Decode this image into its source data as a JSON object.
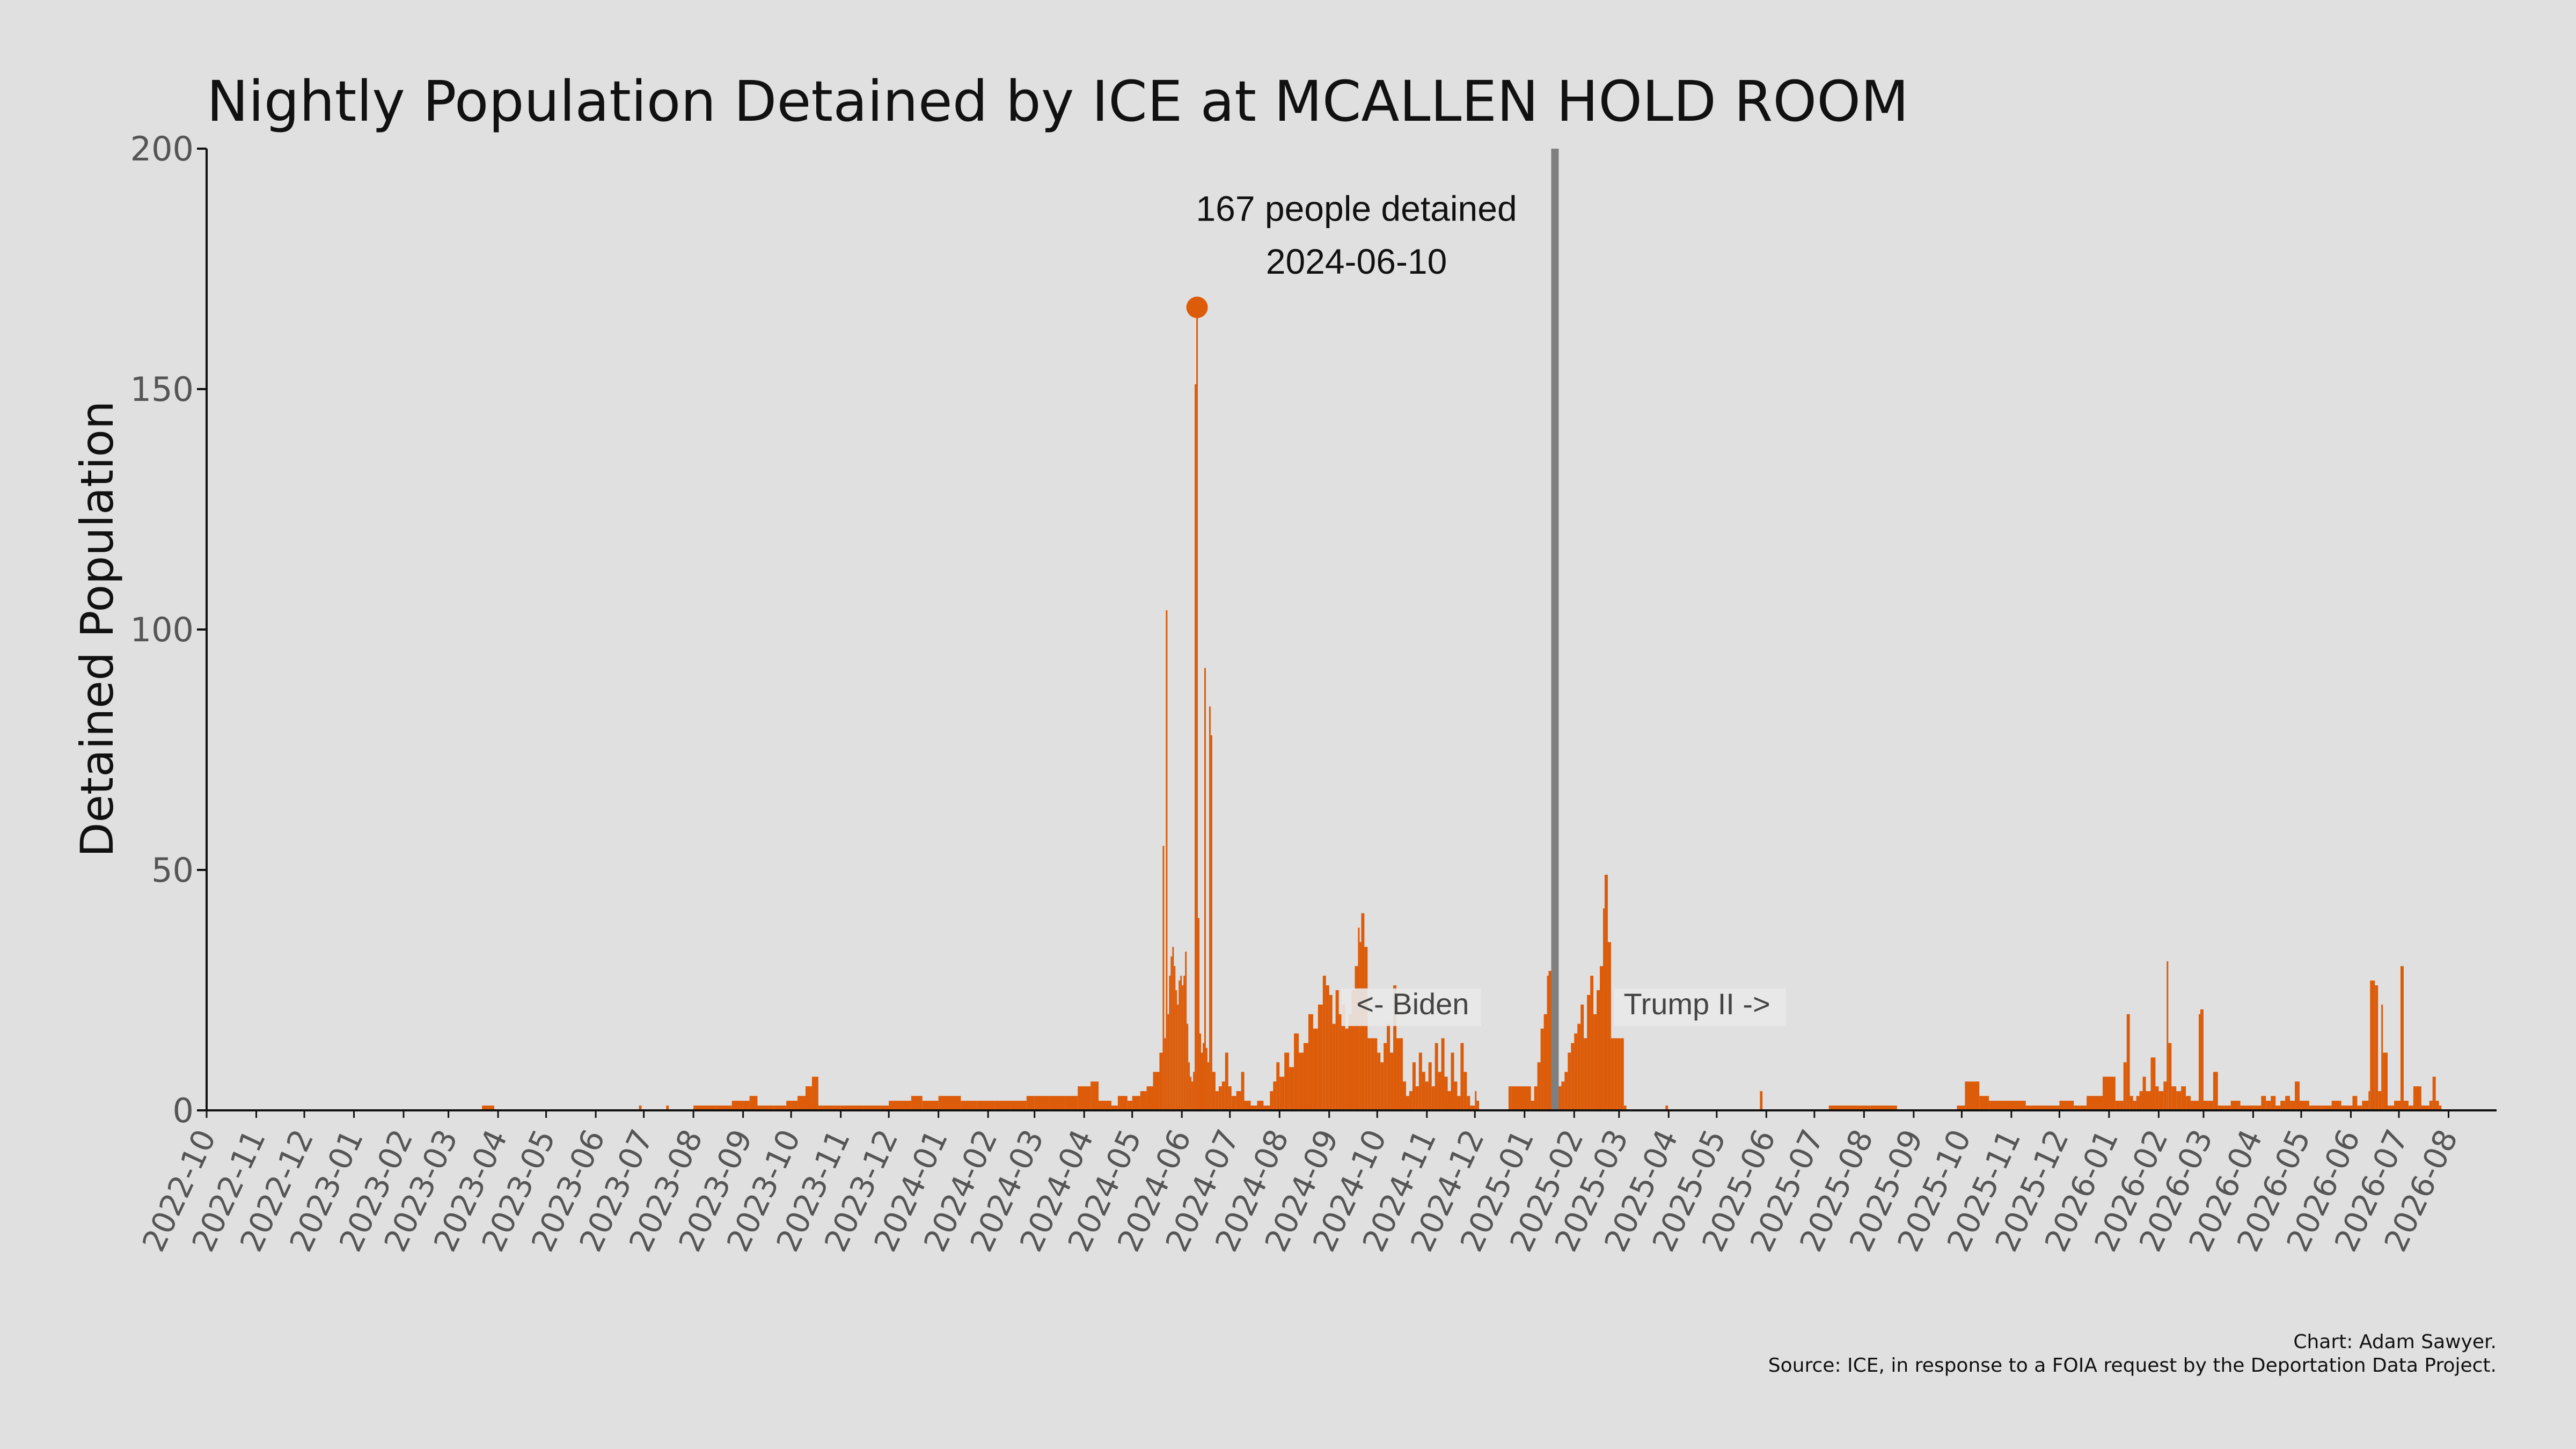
{
  "colors": {
    "background": "#e0e0e0",
    "bars": "#dc5c0a",
    "divider": "#7f7f7f",
    "label_box": "#e9e9e9",
    "axis": "#111111"
  },
  "chart_data": {
    "type": "bar",
    "title": "Nightly Population Detained by ICE at MCALLEN HOLD ROOM",
    "xlabel": "",
    "ylabel": "Detained Population",
    "ylim": [
      0,
      200
    ],
    "yticks": [
      "0",
      "50",
      "100",
      "150",
      "200"
    ],
    "x_range": [
      "2022-10-01",
      "2026-08-31"
    ],
    "xticks": [
      "2022-10",
      "2022-11",
      "2022-12",
      "2023-01",
      "2023-02",
      "2023-03",
      "2023-04",
      "2023-05",
      "2023-06",
      "2023-07",
      "2023-08",
      "2023-09",
      "2023-10",
      "2023-11",
      "2023-12",
      "2024-01",
      "2024-02",
      "2024-03",
      "2024-04",
      "2024-05",
      "2024-06",
      "2024-07",
      "2024-08",
      "2024-09",
      "2024-10",
      "2024-11",
      "2024-12",
      "2025-01",
      "2025-02",
      "2025-03",
      "2025-04",
      "2025-05",
      "2025-06",
      "2025-07",
      "2025-08",
      "2025-09",
      "2025-10",
      "2025-11",
      "2025-12",
      "2026-01",
      "2026-02",
      "2026-03",
      "2026-04",
      "2026-05",
      "2026-06",
      "2026-07",
      "2026-08"
    ],
    "grid": false,
    "legend": "none",
    "series": [
      {
        "points": [
          [
            "2023-03-22",
            1
          ],
          [
            "2023-03-28",
            1
          ],
          [
            "2023-06-28",
            1
          ],
          [
            "2023-07-15",
            1
          ],
          [
            "2023-08-01",
            1
          ],
          [
            "2023-08-15",
            1
          ],
          [
            "2023-08-25",
            2
          ],
          [
            "2023-09-01",
            2
          ],
          [
            "2023-09-05",
            3
          ],
          [
            "2023-09-10",
            1
          ],
          [
            "2023-09-20",
            1
          ],
          [
            "2023-09-28",
            2
          ],
          [
            "2023-10-01",
            2
          ],
          [
            "2023-10-05",
            3
          ],
          [
            "2023-10-10",
            5
          ],
          [
            "2023-10-14",
            7
          ],
          [
            "2023-10-18",
            1
          ],
          [
            "2023-11-01",
            1
          ],
          [
            "2023-11-15",
            1
          ],
          [
            "2023-12-01",
            2
          ],
          [
            "2023-12-10",
            2
          ],
          [
            "2023-12-15",
            3
          ],
          [
            "2023-12-22",
            2
          ],
          [
            "2024-01-01",
            3
          ],
          [
            "2024-01-10",
            3
          ],
          [
            "2024-01-15",
            2
          ],
          [
            "2024-01-25",
            2
          ],
          [
            "2024-02-05",
            2
          ],
          [
            "2024-02-15",
            2
          ],
          [
            "2024-02-25",
            3
          ],
          [
            "2024-03-01",
            3
          ],
          [
            "2024-03-10",
            3
          ],
          [
            "2024-03-20",
            3
          ],
          [
            "2024-03-28",
            5
          ],
          [
            "2024-04-05",
            6
          ],
          [
            "2024-04-10",
            2
          ],
          [
            "2024-04-18",
            1
          ],
          [
            "2024-04-22",
            3
          ],
          [
            "2024-04-28",
            2
          ],
          [
            "2024-05-01",
            3
          ],
          [
            "2024-05-06",
            4
          ],
          [
            "2024-05-10",
            5
          ],
          [
            "2024-05-14",
            8
          ],
          [
            "2024-05-18",
            12
          ],
          [
            "2024-05-20",
            55
          ],
          [
            "2024-05-21",
            15
          ],
          [
            "2024-05-22",
            104
          ],
          [
            "2024-05-23",
            20
          ],
          [
            "2024-05-24",
            28
          ],
          [
            "2024-05-25",
            32
          ],
          [
            "2024-05-26",
            34
          ],
          [
            "2024-05-27",
            30
          ],
          [
            "2024-05-28",
            25
          ],
          [
            "2024-05-29",
            22
          ],
          [
            "2024-05-30",
            27
          ],
          [
            "2024-05-31",
            28
          ],
          [
            "2024-06-01",
            26
          ],
          [
            "2024-06-02",
            28
          ],
          [
            "2024-06-03",
            33
          ],
          [
            "2024-06-04",
            18
          ],
          [
            "2024-06-05",
            10
          ],
          [
            "2024-06-06",
            7
          ],
          [
            "2024-06-07",
            6
          ],
          [
            "2024-06-08",
            8
          ],
          [
            "2024-06-09",
            151
          ],
          [
            "2024-06-10",
            167
          ],
          [
            "2024-06-11",
            40
          ],
          [
            "2024-06-12",
            16
          ],
          [
            "2024-06-13",
            12
          ],
          [
            "2024-06-14",
            14
          ],
          [
            "2024-06-15",
            92
          ],
          [
            "2024-06-16",
            13
          ],
          [
            "2024-06-17",
            10
          ],
          [
            "2024-06-18",
            84
          ],
          [
            "2024-06-19",
            78
          ],
          [
            "2024-06-20",
            8
          ],
          [
            "2024-06-22",
            4
          ],
          [
            "2024-06-24",
            5
          ],
          [
            "2024-06-26",
            6
          ],
          [
            "2024-06-28",
            12
          ],
          [
            "2024-06-30",
            5
          ],
          [
            "2024-07-02",
            3
          ],
          [
            "2024-07-05",
            4
          ],
          [
            "2024-07-08",
            8
          ],
          [
            "2024-07-10",
            2
          ],
          [
            "2024-07-14",
            1
          ],
          [
            "2024-07-18",
            2
          ],
          [
            "2024-07-22",
            1
          ],
          [
            "2024-07-26",
            4
          ],
          [
            "2024-07-28",
            6
          ],
          [
            "2024-07-30",
            10
          ],
          [
            "2024-08-01",
            7
          ],
          [
            "2024-08-04",
            12
          ],
          [
            "2024-08-07",
            9
          ],
          [
            "2024-08-10",
            16
          ],
          [
            "2024-08-13",
            12
          ],
          [
            "2024-08-16",
            14
          ],
          [
            "2024-08-19",
            20
          ],
          [
            "2024-08-22",
            17
          ],
          [
            "2024-08-25",
            22
          ],
          [
            "2024-08-28",
            28
          ],
          [
            "2024-08-30",
            26
          ],
          [
            "2024-09-01",
            24
          ],
          [
            "2024-09-03",
            18
          ],
          [
            "2024-09-05",
            25
          ],
          [
            "2024-09-07",
            20
          ],
          [
            "2024-09-09",
            22
          ],
          [
            "2024-09-11",
            17
          ],
          [
            "2024-09-13",
            20
          ],
          [
            "2024-09-15",
            25
          ],
          [
            "2024-09-17",
            30
          ],
          [
            "2024-09-19",
            38
          ],
          [
            "2024-09-20",
            35
          ],
          [
            "2024-09-21",
            41
          ],
          [
            "2024-09-23",
            34
          ],
          [
            "2024-09-25",
            15
          ],
          [
            "2024-09-27",
            15
          ],
          [
            "2024-09-29",
            15
          ],
          [
            "2024-10-01",
            12
          ],
          [
            "2024-10-03",
            10
          ],
          [
            "2024-10-05",
            14
          ],
          [
            "2024-10-07",
            18
          ],
          [
            "2024-10-09",
            12
          ],
          [
            "2024-10-11",
            26
          ],
          [
            "2024-10-13",
            15
          ],
          [
            "2024-10-15",
            15
          ],
          [
            "2024-10-17",
            6
          ],
          [
            "2024-10-19",
            3
          ],
          [
            "2024-10-21",
            4
          ],
          [
            "2024-10-23",
            10
          ],
          [
            "2024-10-25",
            5
          ],
          [
            "2024-10-27",
            12
          ],
          [
            "2024-10-29",
            8
          ],
          [
            "2024-10-31",
            6
          ],
          [
            "2024-11-02",
            10
          ],
          [
            "2024-11-04",
            5
          ],
          [
            "2024-11-06",
            14
          ],
          [
            "2024-11-08",
            8
          ],
          [
            "2024-11-10",
            15
          ],
          [
            "2024-11-12",
            7
          ],
          [
            "2024-11-14",
            4
          ],
          [
            "2024-11-16",
            12
          ],
          [
            "2024-11-18",
            6
          ],
          [
            "2024-11-20",
            3
          ],
          [
            "2024-11-22",
            14
          ],
          [
            "2024-11-24",
            8
          ],
          [
            "2024-11-26",
            3
          ],
          [
            "2024-11-28",
            1
          ],
          [
            "2024-12-01",
            4
          ],
          [
            "2024-12-02",
            2
          ],
          [
            "2024-12-22",
            5
          ],
          [
            "2024-12-24",
            5
          ],
          [
            "2025-01-05",
            2
          ],
          [
            "2025-01-07",
            5
          ],
          [
            "2025-01-09",
            10
          ],
          [
            "2025-01-11",
            17
          ],
          [
            "2025-01-13",
            20
          ],
          [
            "2025-01-15",
            28
          ],
          [
            "2025-01-16",
            29
          ],
          [
            "2025-01-18",
            19
          ],
          [
            "2025-01-20",
            19
          ],
          [
            "2025-01-22",
            5
          ],
          [
            "2025-01-24",
            6
          ],
          [
            "2025-01-26",
            8
          ],
          [
            "2025-01-28",
            12
          ],
          [
            "2025-01-30",
            14
          ],
          [
            "2025-02-01",
            16
          ],
          [
            "2025-02-03",
            18
          ],
          [
            "2025-02-05",
            22
          ],
          [
            "2025-02-07",
            15
          ],
          [
            "2025-02-09",
            24
          ],
          [
            "2025-02-11",
            28
          ],
          [
            "2025-02-13",
            20
          ],
          [
            "2025-02-15",
            25
          ],
          [
            "2025-02-17",
            30
          ],
          [
            "2025-02-19",
            42
          ],
          [
            "2025-02-20",
            49
          ],
          [
            "2025-02-22",
            35
          ],
          [
            "2025-02-24",
            15
          ],
          [
            "2025-02-26",
            15
          ],
          [
            "2025-02-28",
            15
          ],
          [
            "2025-03-02",
            15
          ],
          [
            "2025-03-04",
            1
          ],
          [
            "2025-03-30",
            1
          ],
          [
            "2025-05-28",
            4
          ],
          [
            "2025-07-10",
            1
          ],
          [
            "2025-07-25",
            1
          ],
          [
            "2025-08-05",
            1
          ],
          [
            "2025-08-20",
            1
          ],
          [
            "2025-09-28",
            1
          ],
          [
            "2025-10-03",
            6
          ],
          [
            "2025-10-12",
            3
          ],
          [
            "2025-10-18",
            2
          ],
          [
            "2025-10-25",
            2
          ],
          [
            "2025-11-10",
            1
          ],
          [
            "2025-11-25",
            1
          ],
          [
            "2025-12-01",
            2
          ],
          [
            "2025-12-10",
            1
          ],
          [
            "2025-12-18",
            3
          ],
          [
            "2025-12-28",
            7
          ],
          [
            "2026-01-05",
            2
          ],
          [
            "2026-01-08",
            2
          ],
          [
            "2026-01-10",
            10
          ],
          [
            "2026-01-12",
            20
          ],
          [
            "2026-01-14",
            3
          ],
          [
            "2026-01-16",
            2
          ],
          [
            "2026-01-18",
            3
          ],
          [
            "2026-01-20",
            4
          ],
          [
            "2026-01-22",
            7
          ],
          [
            "2026-01-24",
            4
          ],
          [
            "2026-01-27",
            11
          ],
          [
            "2026-01-30",
            5
          ],
          [
            "2026-02-01",
            4
          ],
          [
            "2026-02-04",
            6
          ],
          [
            "2026-02-06",
            31
          ],
          [
            "2026-02-07",
            14
          ],
          [
            "2026-02-09",
            5
          ],
          [
            "2026-02-12",
            4
          ],
          [
            "2026-02-15",
            5
          ],
          [
            "2026-02-18",
            3
          ],
          [
            "2026-02-21",
            2
          ],
          [
            "2026-02-24",
            2
          ],
          [
            "2026-02-26",
            20
          ],
          [
            "2026-02-27",
            21
          ],
          [
            "2026-03-01",
            2
          ],
          [
            "2026-03-04",
            2
          ],
          [
            "2026-03-07",
            8
          ],
          [
            "2026-03-10",
            1
          ],
          [
            "2026-03-14",
            1
          ],
          [
            "2026-03-18",
            2
          ],
          [
            "2026-03-24",
            1
          ],
          [
            "2026-03-28",
            1
          ],
          [
            "2026-04-02",
            1
          ],
          [
            "2026-04-06",
            3
          ],
          [
            "2026-04-09",
            2
          ],
          [
            "2026-04-12",
            3
          ],
          [
            "2026-04-15",
            1
          ],
          [
            "2026-04-18",
            2
          ],
          [
            "2026-04-21",
            3
          ],
          [
            "2026-04-24",
            2
          ],
          [
            "2026-04-27",
            6
          ],
          [
            "2026-04-30",
            2
          ],
          [
            "2026-05-06",
            1
          ],
          [
            "2026-05-14",
            1
          ],
          [
            "2026-05-20",
            2
          ],
          [
            "2026-05-26",
            1
          ],
          [
            "2026-06-02",
            3
          ],
          [
            "2026-06-05",
            1
          ],
          [
            "2026-06-08",
            2
          ],
          [
            "2026-06-12",
            4
          ],
          [
            "2026-06-13",
            27
          ],
          [
            "2026-06-16",
            26
          ],
          [
            "2026-06-18",
            4
          ],
          [
            "2026-06-20",
            22
          ],
          [
            "2026-06-21",
            12
          ],
          [
            "2026-06-24",
            1
          ],
          [
            "2026-06-28",
            2
          ],
          [
            "2026-07-02",
            30
          ],
          [
            "2026-07-04",
            2
          ],
          [
            "2026-07-07",
            1
          ],
          [
            "2026-07-10",
            5
          ],
          [
            "2026-07-15",
            1
          ],
          [
            "2026-07-20",
            2
          ],
          [
            "2026-07-22",
            7
          ],
          [
            "2026-07-24",
            2
          ],
          [
            "2026-07-26",
            1
          ]
        ]
      }
    ],
    "peak": {
      "date": "2024-06-10",
      "value": 167,
      "label_line1": "167 people detained",
      "label_line2": "2024-06-10"
    },
    "divider": {
      "date": "2025-01-20"
    },
    "region_labels": {
      "left": "<- Biden",
      "right": "Trump II ->"
    }
  },
  "caption": {
    "line1": "Chart: Adam Sawyer.",
    "line2": "Source: ICE, in response to a FOIA request by the Deportation Data Project."
  }
}
